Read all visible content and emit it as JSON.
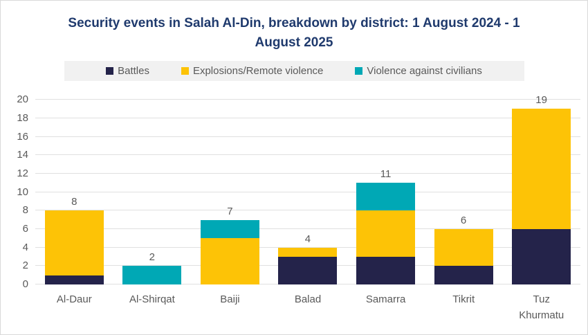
{
  "title": "Security events in Salah Al-Din, breakdown by district: 1 August 2024 - 1 August 2025",
  "colors": {
    "title_text": "#1f3a6d",
    "axis_text": "#595959",
    "gridline": "#e0e0e0",
    "legend_background": "#f1f1f1",
    "frame_border": "#d9d9d9",
    "battles": "#24234a",
    "explosions_remote_violence": "#fdc306",
    "violence_against_civilians": "#00a8b5"
  },
  "chart_data": {
    "type": "bar",
    "stacked": true,
    "title": "Security events in Salah Al-Din, breakdown by district: 1 August 2024 - 1 August 2025",
    "categories": [
      "Al-Daur",
      "Al-Shirqat",
      "Baiji",
      "Balad",
      "Samarra",
      "Tikrit",
      "Tuz\nKhurmatu"
    ],
    "series": [
      {
        "name": "Battles",
        "color": "#24234a",
        "values": [
          1,
          0,
          0,
          3,
          3,
          2,
          6
        ]
      },
      {
        "name": "Explosions/Remote violence",
        "color": "#fdc306",
        "values": [
          7,
          0,
          5,
          1,
          5,
          4,
          13
        ]
      },
      {
        "name": "Violence against civilians",
        "color": "#00a8b5",
        "values": [
          0,
          2,
          2,
          0,
          3,
          0,
          0
        ]
      }
    ],
    "totals": [
      8,
      2,
      7,
      4,
      11,
      6,
      19
    ],
    "xlabel": "",
    "ylabel": "",
    "ylim": [
      0,
      20
    ],
    "yticks": [
      0,
      2,
      4,
      6,
      8,
      10,
      12,
      14,
      16,
      18,
      20
    ],
    "grid": "horizontal",
    "legend_position": "top"
  }
}
